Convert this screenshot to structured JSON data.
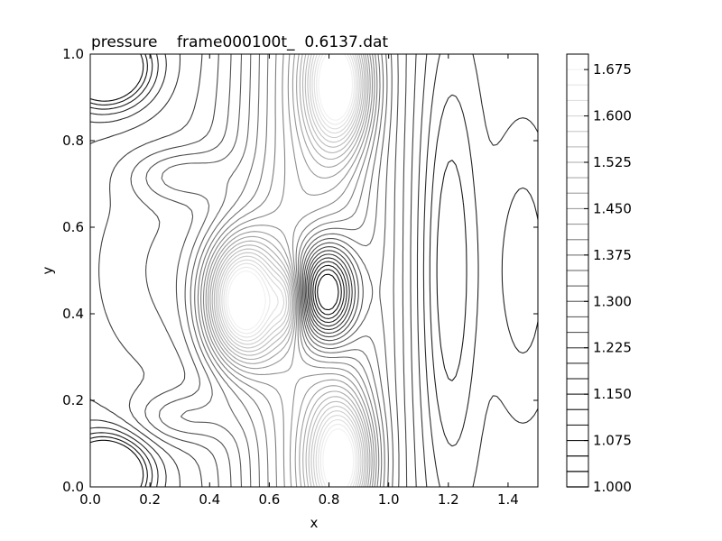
{
  "chart_data": {
    "type": "contour",
    "title": "pressure    frame000100t_  0.6137.dat",
    "xlabel": "x",
    "ylabel": "y",
    "xlim": [
      0.0,
      1.5
    ],
    "ylim": [
      0.0,
      1.0
    ],
    "x_ticks": [
      "0.0",
      "0.2",
      "0.4",
      "0.6",
      "0.8",
      "1.0",
      "1.2",
      "1.4"
    ],
    "y_ticks": [
      "0.0",
      "0.2",
      "0.4",
      "0.6",
      "0.8",
      "1.0"
    ],
    "colorbar": {
      "range": [
        1.0,
        1.7
      ],
      "step": 0.025,
      "tick_labels": [
        "1.000",
        "1.075",
        "1.150",
        "1.225",
        "1.300",
        "1.375",
        "1.450",
        "1.525",
        "1.600",
        "1.675"
      ],
      "color_low": "#000000",
      "color_high": "#ffffff"
    },
    "colormap": "gray",
    "grid": false
  }
}
